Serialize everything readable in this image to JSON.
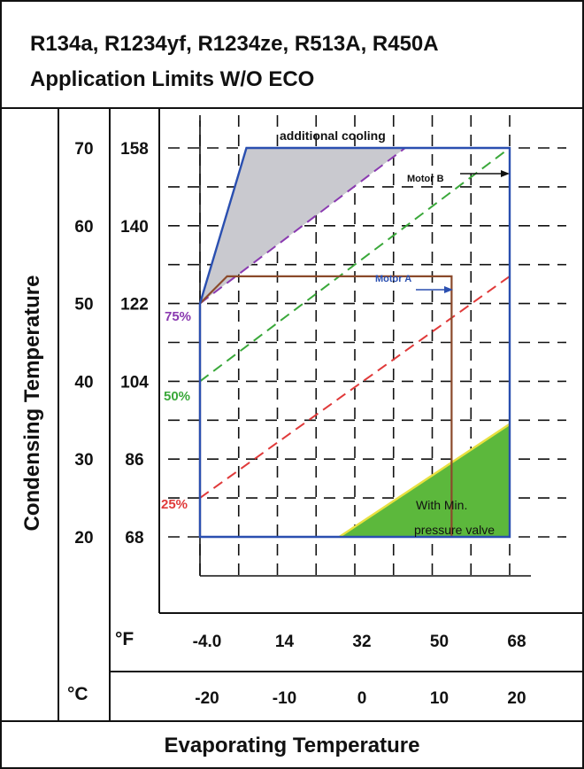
{
  "chart_data": {
    "type": "area",
    "title_line1": "R134a, R1234yf, R1234ze, R513A, R450A",
    "title_line2": "Application Limits W/O ECO",
    "xlabel": "Evaporating Temperature",
    "ylabel": "Condensing Temperature",
    "x_unit_f": "°F",
    "x_unit_c": "°C",
    "x_ticks_c": [
      -20,
      -10,
      0,
      10,
      20
    ],
    "x_ticks_f_labels": [
      "-4.0",
      "14",
      "32",
      "50",
      "68"
    ],
    "y_ticks_c": [
      20,
      30,
      40,
      50,
      60,
      70
    ],
    "y_ticks_f": [
      68,
      86,
      104,
      122,
      140,
      158
    ],
    "xlim": [
      -20,
      20
    ],
    "ylim": [
      20,
      70
    ],
    "grid": true,
    "envelope": {
      "name": "application-limit",
      "color": "#2a4fb0",
      "points": [
        [
          -20,
          20
        ],
        [
          -20,
          50
        ],
        [
          -14,
          70
        ],
        [
          20,
          70
        ],
        [
          20,
          20
        ]
      ]
    },
    "motor_a_limit": {
      "label": "Motor A",
      "color": "#8b4a2b",
      "points": [
        [
          -20,
          20
        ],
        [
          -20,
          50
        ],
        [
          -16.5,
          53.5
        ],
        [
          12.5,
          53.5
        ],
        [
          12.5,
          20
        ]
      ]
    },
    "motor_b_label": "Motor B",
    "additional_cooling": {
      "label": "additional cooling",
      "color": "#c9c9cf",
      "points": [
        [
          -20,
          50
        ],
        [
          -14,
          70
        ],
        [
          6.5,
          70
        ]
      ]
    },
    "min_pressure_valve": {
      "label_line1": "With  Min.",
      "label_line2": "pressure   valve",
      "color": "#5cb83c",
      "edge_color": "#e8e040",
      "points": [
        [
          -2,
          20
        ],
        [
          20,
          34.5
        ],
        [
          20,
          20
        ]
      ]
    },
    "series": [
      {
        "name": "25%",
        "color": "#e03a3a",
        "points": [
          [
            -20,
            25
          ],
          [
            20,
            53.5
          ]
        ]
      },
      {
        "name": "50%",
        "color": "#3aa83a",
        "points": [
          [
            -20,
            40
          ],
          [
            20,
            70
          ]
        ]
      },
      {
        "name": "75%",
        "color": "#8a3ab0",
        "points": [
          [
            -20,
            50
          ],
          [
            6.5,
            70
          ]
        ]
      }
    ]
  }
}
